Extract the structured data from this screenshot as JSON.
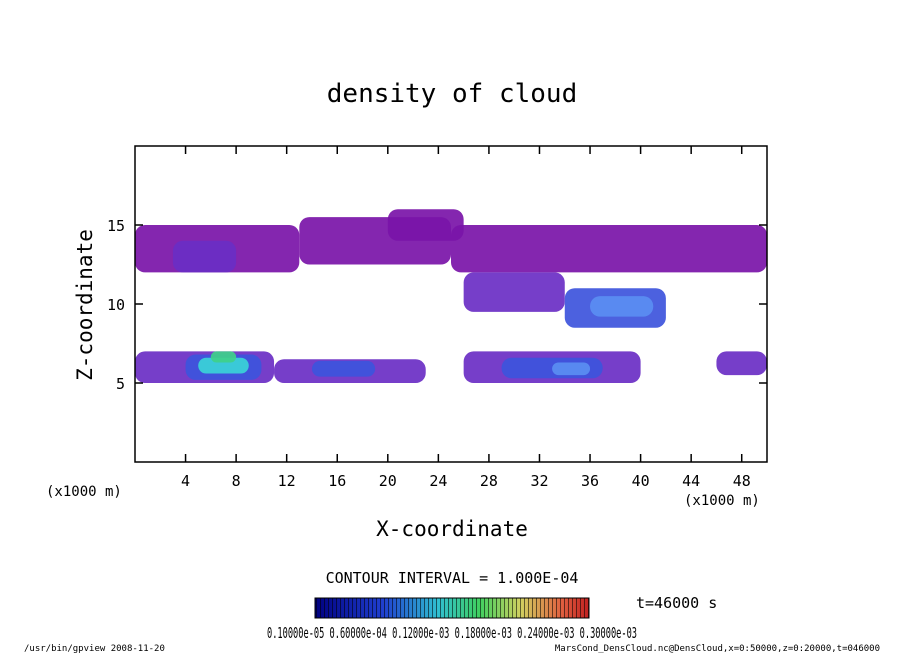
{
  "chart_data": {
    "type": "heatmap",
    "title": "density of cloud",
    "xlabel": "X-coordinate",
    "ylabel": "Z-coordinate",
    "x_unit": "(x1000 m)",
    "y_unit": "(x1000 m)",
    "xlim": [
      0,
      50
    ],
    "ylim": [
      0,
      20
    ],
    "x_ticks": [
      4,
      8,
      12,
      16,
      20,
      24,
      28,
      32,
      36,
      40,
      44,
      48
    ],
    "y_ticks": [
      5,
      10,
      15
    ],
    "contour_interval": "CONTOUR INTERVAL = 1.000E-04",
    "time_label": "t=46000 s",
    "colorbar_labels": "0.10000e-05 0.60000e-04 0.12000e-03 0.18000e-03 0.24000e-03 0.30000e-03",
    "colors": {
      "low": "#7a14a8",
      "mid": "#6a2ec4",
      "blue": "#3d54dc",
      "light_blue": "#5a8ef2",
      "cyan": "#39d4d8",
      "green": "#3fd08a"
    },
    "regions": [
      {
        "x": [
          0,
          13
        ],
        "z": [
          12,
          15
        ],
        "level": "low"
      },
      {
        "x": [
          13,
          25
        ],
        "z": [
          12.5,
          15.5
        ],
        "level": "low"
      },
      {
        "x": [
          25,
          50
        ],
        "z": [
          12,
          15
        ],
        "level": "low"
      },
      {
        "x": [
          20,
          26
        ],
        "z": [
          14,
          16
        ],
        "level": "low"
      },
      {
        "x": [
          3,
          8
        ],
        "z": [
          12,
          14
        ],
        "level": "mid"
      },
      {
        "x": [
          26,
          34
        ],
        "z": [
          9.5,
          12
        ],
        "level": "mid"
      },
      {
        "x": [
          34,
          42
        ],
        "z": [
          8.5,
          11
        ],
        "level": "blue"
      },
      {
        "x": [
          36,
          41
        ],
        "z": [
          9.2,
          10.5
        ],
        "level": "light_blue"
      },
      {
        "x": [
          0,
          11
        ],
        "z": [
          5,
          7
        ],
        "level": "mid"
      },
      {
        "x": [
          4,
          10
        ],
        "z": [
          5.2,
          6.8
        ],
        "level": "blue"
      },
      {
        "x": [
          5,
          9
        ],
        "z": [
          5.6,
          6.6
        ],
        "level": "cyan"
      },
      {
        "x": [
          6,
          8
        ],
        "z": [
          6.3,
          7
        ],
        "level": "green"
      },
      {
        "x": [
          11,
          23
        ],
        "z": [
          5,
          6.5
        ],
        "level": "mid"
      },
      {
        "x": [
          14,
          19
        ],
        "z": [
          5.4,
          6.4
        ],
        "level": "blue"
      },
      {
        "x": [
          26,
          40
        ],
        "z": [
          5,
          7
        ],
        "level": "mid"
      },
      {
        "x": [
          29,
          37
        ],
        "z": [
          5.3,
          6.6
        ],
        "level": "blue"
      },
      {
        "x": [
          33,
          36
        ],
        "z": [
          5.5,
          6.3
        ],
        "level": "light_blue"
      },
      {
        "x": [
          46,
          50
        ],
        "z": [
          5.5,
          7
        ],
        "level": "mid"
      }
    ]
  },
  "footer": {
    "left": "/usr/bin/gpview  2008-11-20",
    "right": "MarsCond_DensCloud.nc@DensCloud,x=0:50000,z=0:20000,t=046000"
  }
}
